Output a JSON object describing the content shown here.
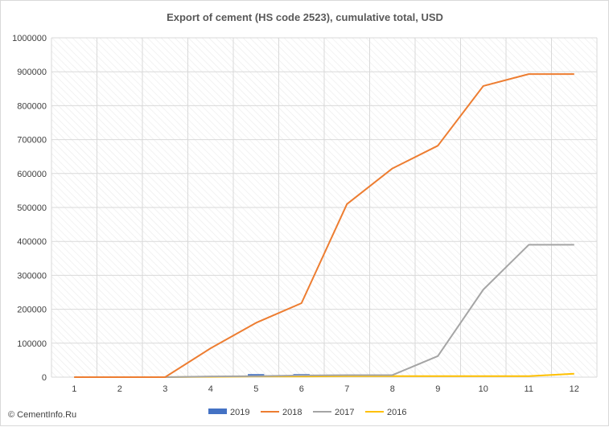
{
  "chart_data": {
    "type": "bar",
    "title": "Export of cement (HS code 2523), cumulative total, USD",
    "xlabel": "",
    "ylabel": "",
    "categories": [
      "1",
      "2",
      "3",
      "4",
      "5",
      "6",
      "7",
      "8",
      "9",
      "10",
      "11",
      "12"
    ],
    "ylim": [
      0,
      1000000
    ],
    "yticks": [
      0,
      100000,
      200000,
      300000,
      400000,
      500000,
      600000,
      700000,
      800000,
      900000,
      1000000
    ],
    "grid": true,
    "legend_position": "bottom",
    "series": [
      {
        "name": "2019",
        "kind": "bar",
        "color": "#4472c4",
        "values": [
          0,
          0,
          0,
          0,
          9000,
          9000,
          null,
          null,
          null,
          null,
          null,
          null
        ]
      },
      {
        "name": "2018",
        "kind": "line",
        "color": "#ed7d31",
        "values": [
          0,
          0,
          0,
          85000,
          160000,
          218000,
          510000,
          615000,
          682000,
          858000,
          893000,
          893000
        ]
      },
      {
        "name": "2017",
        "kind": "line",
        "color": "#a5a5a5",
        "values": [
          0,
          0,
          0,
          2000,
          3000,
          5000,
          6000,
          6000,
          62000,
          258000,
          390000,
          390000
        ]
      },
      {
        "name": "2016",
        "kind": "line",
        "color": "#ffc000",
        "values": [
          0,
          0,
          0,
          1000,
          2000,
          2000,
          3000,
          3000,
          3000,
          3000,
          3000,
          10000
        ]
      }
    ]
  },
  "source": "© CementInfo.Ru"
}
